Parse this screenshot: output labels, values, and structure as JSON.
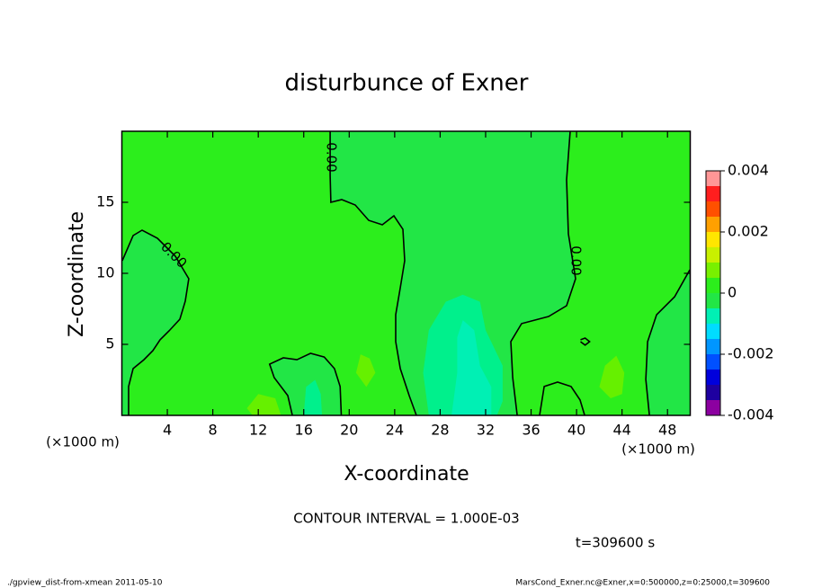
{
  "chart_data": {
    "type": "contour",
    "title": "disturbunce of Exner",
    "x_label": "X-coordinate",
    "y_label": "Z-coordinate",
    "x_unit_left": "(×1000 m)",
    "x_unit_right": "(×1000 m)",
    "xlim": [
      0,
      50
    ],
    "xticks": [
      4,
      8,
      12,
      16,
      20,
      24,
      28,
      32,
      36,
      40,
      44,
      48
    ],
    "ylim": [
      0,
      20
    ],
    "yticks": [
      5,
      10,
      15
    ],
    "background_color": "#2cee1c",
    "regions": [
      {
        "color": "#22e646",
        "x": [
          0.04,
          0.99,
          1.78,
          3.13,
          4.71,
          5.89,
          5.58,
          5.1,
          4.15,
          3.36,
          2.73,
          1.94,
          0.99,
          0.59,
          0.59,
          0
        ],
        "z": [
          10.89,
          12.66,
          13.04,
          12.47,
          11.2,
          9.62,
          8.04,
          6.77,
          5.95,
          5.32,
          4.56,
          3.92,
          3.29,
          2.03,
          0,
          0
        ]
      },
      {
        "color": "#22e646",
        "x": [
          18.32,
          18.32,
          18.39,
          19.34,
          20.53,
          21.72,
          22.91,
          23.93,
          24.72,
          24.88,
          24.49,
          24.09,
          24.09,
          24.49,
          25.28,
          25.91,
          34.78,
          34.38,
          34.22,
          35.17,
          37.54,
          39.12,
          39.91,
          39.28,
          39.12,
          39.44
        ],
        "z": [
          20,
          16.9,
          15.0,
          15.19,
          14.81,
          13.73,
          13.42,
          14.05,
          13.1,
          10.89,
          8.99,
          7.09,
          5.19,
          3.29,
          1.39,
          0,
          0,
          2.66,
          5.19,
          6.46,
          6.96,
          7.72,
          9.62,
          12.78,
          16.58,
          20
        ]
      },
      {
        "color": "#22e646",
        "x": [
          50,
          49.96,
          48.62,
          47.04,
          46.25,
          46.09,
          46.41,
          50
        ],
        "z": [
          20,
          10.25,
          8.35,
          7.09,
          5.19,
          2.53,
          0,
          0
        ]
      },
      {
        "color": "#22e646",
        "x": [
          15.0,
          14.6,
          13.4,
          13.0,
          14.2,
          15.4,
          16.6,
          17.8,
          18.7,
          19.2,
          19.3
        ],
        "z": [
          0,
          1.39,
          2.66,
          3.61,
          4.05,
          3.92,
          4.37,
          4.11,
          3.29,
          2.03,
          0
        ]
      },
      {
        "color": "#2cee1c",
        "x": [
          36.75,
          37.15,
          38.33,
          39.52,
          40.31,
          40.71
        ],
        "z": [
          0,
          2.03,
          2.34,
          2.03,
          1.08,
          0
        ]
      },
      {
        "color": "#00f08c",
        "x": [
          27,
          26.5,
          27,
          28.5,
          30,
          31.5,
          32,
          33.5,
          33.5,
          33
        ],
        "z": [
          0,
          3,
          6,
          8,
          8.5,
          8,
          6,
          3.5,
          1,
          0
        ]
      },
      {
        "color": "#00f0b4",
        "x": [
          29,
          29.5,
          29.5,
          30,
          31,
          31.5,
          32.5,
          32.5
        ],
        "z": [
          0,
          3,
          5.5,
          6.7,
          6,
          3.5,
          2,
          0
        ]
      },
      {
        "color": "#00f08c",
        "x": [
          16,
          16.2,
          17,
          17.5,
          17.6
        ],
        "z": [
          0,
          2,
          2.5,
          1.5,
          0
        ]
      },
      {
        "color": "#66f000",
        "x": [
          42,
          42.5,
          43.5,
          44.2,
          44,
          43
        ],
        "z": [
          2,
          3.5,
          4.2,
          3,
          1.5,
          1.2
        ]
      },
      {
        "color": "#66f000",
        "x": [
          20.6,
          21,
          21.8,
          22.3,
          21.5
        ],
        "z": [
          3,
          4.3,
          4,
          3,
          2
        ]
      },
      {
        "color": "#66f000",
        "x": [
          11,
          12,
          13.5,
          14,
          11.5
        ],
        "z": [
          0.5,
          1.5,
          1.2,
          0,
          0
        ]
      }
    ],
    "contours": [
      {
        "x": [
          0.04,
          0.99,
          1.78,
          3.13,
          4.71,
          5.89,
          5.58,
          5.1,
          4.15,
          3.36,
          2.73,
          1.94,
          0.99,
          0.59,
          0.59
        ],
        "z": [
          10.89,
          12.66,
          13.04,
          12.47,
          11.2,
          9.62,
          8.04,
          6.77,
          5.95,
          5.32,
          4.56,
          3.92,
          3.29,
          2.03,
          0
        ]
      },
      {
        "x": [
          18.32,
          18.32,
          18.39,
          19.34,
          20.53,
          21.72,
          22.91,
          23.93,
          24.72,
          24.88,
          24.49,
          24.09,
          24.09,
          24.49,
          25.28,
          25.91
        ],
        "z": [
          20,
          16.9,
          15.0,
          15.19,
          14.81,
          13.73,
          13.42,
          14.05,
          13.1,
          10.89,
          8.99,
          7.09,
          5.19,
          3.29,
          1.39,
          0
        ]
      },
      {
        "x": [
          39.44,
          39.12,
          39.28,
          39.91,
          39.12,
          37.54,
          35.17,
          34.22,
          34.38,
          34.78
        ],
        "z": [
          20,
          16.58,
          12.78,
          9.62,
          7.72,
          6.96,
          6.46,
          5.19,
          2.66,
          0
        ]
      },
      {
        "x": [
          49.96,
          48.62,
          47.04,
          46.25,
          46.09,
          46.41
        ],
        "z": [
          10.25,
          8.35,
          7.09,
          5.19,
          2.53,
          0
        ]
      },
      {
        "x": [
          15.0,
          14.6,
          13.4,
          13.0,
          14.2,
          15.4,
          16.6,
          17.8,
          18.7,
          19.2,
          19.3
        ],
        "z": [
          0,
          1.39,
          2.66,
          3.61,
          4.05,
          3.92,
          4.37,
          4.11,
          3.29,
          2.03,
          0
        ]
      },
      {
        "x": [
          36.75,
          37.15,
          38.33,
          39.52,
          40.31,
          40.71
        ],
        "z": [
          0,
          2.03,
          2.34,
          2.03,
          1.08,
          0
        ]
      },
      {
        "x": [
          40.35,
          40.75,
          41.15,
          40.75,
          40.35
        ],
        "z": [
          5.32,
          5.44,
          5.19,
          4.94,
          5.19
        ]
      }
    ],
    "contour_labels": [
      "0.00",
      "0.00",
      "0.00"
    ],
    "colorbar": {
      "levels": [
        -0.004,
        -0.0035,
        -0.003,
        -0.0025,
        -0.002,
        -0.0015,
        -0.001,
        -0.0005,
        0,
        0.0005,
        0.001,
        0.0015,
        0.002,
        0.0025,
        0.003,
        0.0035,
        0.004
      ],
      "colors": [
        "#8c00a0",
        "#1e00a0",
        "#0000dc",
        "#0050ff",
        "#0096ff",
        "#00dcff",
        "#00f0b4",
        "#22e646",
        "#2cee1c",
        "#78f000",
        "#c8f000",
        "#ffe600",
        "#ffa000",
        "#ff5000",
        "#ff1e1e",
        "#ff9696"
      ],
      "lim": [
        -0.004,
        0.004
      ],
      "ticks": [
        -0.004,
        -0.002,
        0,
        0.002,
        0.004
      ]
    },
    "contour_interval": "CONTOUR INTERVAL = 1.000E-03",
    "time": "t=309600 s",
    "footer_left": "./gpview_dist-from-xmean  2011-05-10",
    "footer_right": "MarsCond_Exner.nc@Exner,x=0:500000,z=0:25000,t=309600"
  }
}
